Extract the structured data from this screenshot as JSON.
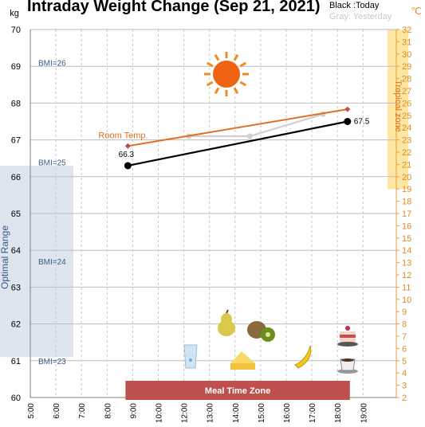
{
  "chart_data": {
    "type": "line",
    "title": "Intraday Weight Change (Sep 21, 2021)",
    "legend": {
      "today": "Black :Today",
      "yesterday": "Gray: Yesterday"
    },
    "left_axis": {
      "unit": "kg",
      "range": [
        60,
        70
      ],
      "ticks": [
        "60",
        "61",
        "62",
        "63",
        "64",
        "65",
        "66",
        "67",
        "68",
        "69",
        "70"
      ]
    },
    "right_axis": {
      "unit": "℃",
      "range": [
        2,
        32
      ],
      "ticks": [
        "2",
        "3",
        "4",
        "5",
        "6",
        "7",
        "8",
        "9",
        "10",
        "11",
        "12",
        "13",
        "14",
        "15",
        "16",
        "17",
        "18",
        "19",
        "20",
        "21",
        "22",
        "23",
        "24",
        "25",
        "26",
        "27",
        "28",
        "29",
        "30",
        "31",
        "32"
      ]
    },
    "x_axis": {
      "range": [
        "5:00",
        "20:00"
      ],
      "ticks": [
        "5:00",
        "6:00",
        "7:00",
        "8:00",
        "9:00",
        "10:00",
        "12:00",
        "13:00",
        "14:00",
        "15:00",
        "16:00",
        "17:00",
        "18:00",
        "19:00"
      ]
    },
    "series": [
      {
        "name": "Today",
        "color": "#000000",
        "points": [
          {
            "x": "9:00",
            "y": 66.3,
            "label": "66.3"
          },
          {
            "x": "18:00",
            "y": 67.5,
            "label": "67.5"
          }
        ]
      },
      {
        "name": "Yesterday",
        "color": "#d0d0d0",
        "points": [
          {
            "x": "11:30",
            "y": 67.1
          },
          {
            "x": "14:00",
            "y": 67.1
          },
          {
            "x": "17:00",
            "y": 67.7
          }
        ]
      },
      {
        "name": "Room Temp.",
        "color": "#e07020",
        "axis": "right",
        "points": [
          {
            "x": "9:00",
            "y": 22.5
          },
          {
            "x": "18:00",
            "y": 25.5
          }
        ]
      }
    ],
    "bmi_lines": [
      {
        "label": "BMI=26",
        "kg": 69.1
      },
      {
        "label": "BMI=25",
        "kg": 66.4
      },
      {
        "label": "BMI=24",
        "kg": 63.7
      },
      {
        "label": "BMI=23",
        "kg": 61.0
      }
    ],
    "zones": {
      "optimal": {
        "label": "Optimal Range",
        "kg": [
          61.1,
          66.3
        ],
        "color": "#dfe5ee"
      },
      "tropical": {
        "label": "Tropical zone",
        "celsius": [
          19,
          32
        ],
        "color": "#fde6a1"
      },
      "meal": {
        "label": "Meal Time Zone",
        "x": [
          "9:00",
          "18:00"
        ],
        "color": "#c0504d"
      }
    },
    "icons": [
      "sun-icon",
      "pear-icon",
      "kiwi-icon",
      "cake-icon",
      "water-glass-icon",
      "cheese-icon",
      "banana-icon",
      "coffee-icon"
    ],
    "grid": true
  }
}
